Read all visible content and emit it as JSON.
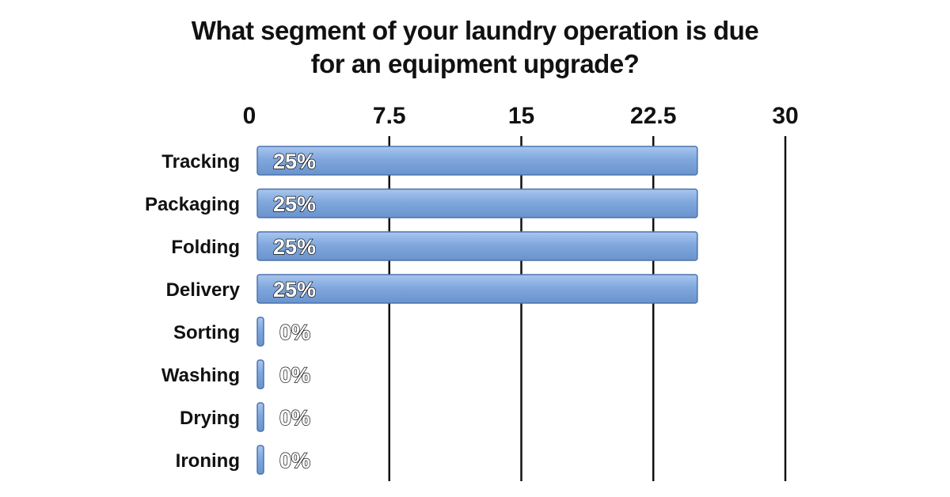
{
  "title": {
    "line1": "What segment of your laundry operation is due",
    "line2": "for an equipment upgrade?"
  },
  "colors": {
    "bar_fill": "#7fa7de",
    "bar_stroke": "#4b74ae",
    "gridline": "#111111",
    "text": "#111111"
  },
  "chart_data": {
    "type": "bar",
    "orientation": "horizontal",
    "title": "What segment of your laundry operation is due for an equipment upgrade?",
    "xlabel": "",
    "ylabel": "",
    "categories": [
      "Tracking",
      "Packaging",
      "Folding",
      "Delivery",
      "Sorting",
      "Washing",
      "Drying",
      "Ironing"
    ],
    "values": [
      25,
      25,
      25,
      25,
      0,
      0,
      0,
      0
    ],
    "data_labels": [
      "25%",
      "25%",
      "25%",
      "25%",
      "0%",
      "0%",
      "0%",
      "0%"
    ],
    "xlim": [
      0,
      30
    ],
    "x_ticks": [
      0,
      7.5,
      15,
      22.5,
      30
    ],
    "x_tick_labels": [
      "0",
      "7.5",
      "15",
      "22.5",
      "30"
    ],
    "axis_position": "top",
    "grid": true
  }
}
